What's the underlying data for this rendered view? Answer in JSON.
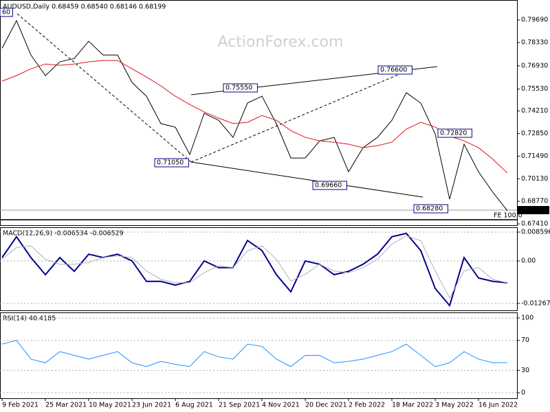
{
  "chart_data": [
    {
      "type": "line",
      "title": "AUDUSD,Daily  0.68459 0.68540 0.68146 0.68199",
      "watermark": "ActionForex.com",
      "ylim": [
        0.6733,
        0.8077
      ],
      "yticks": [
        {
          "value": 0.7969,
          "label": "0.79690"
        },
        {
          "value": 0.7833,
          "label": "0.78330"
        },
        {
          "value": 0.7693,
          "label": "0.76930"
        },
        {
          "value": 0.7553,
          "label": "0.75530"
        },
        {
          "value": 0.7421,
          "label": "0.74210"
        },
        {
          "value": 0.7285,
          "label": "0.72850"
        },
        {
          "value": 0.7149,
          "label": "0.71490"
        },
        {
          "value": 0.7013,
          "label": "0.70130"
        },
        {
          "value": 0.6877,
          "label": "0.68770"
        },
        {
          "value": 0.6741,
          "label": "0.67410"
        }
      ],
      "last_label": "0.68199",
      "annotations": [
        "60",
        "0.75550",
        "0.76600",
        "0.71050",
        "0.69660",
        "0.72820",
        "0.68280",
        "FE 100.0"
      ],
      "series": [
        {
          "color": "#000000",
          "values": [
            0.7799,
            0.7965,
            0.7758,
            0.7634,
            0.7717,
            0.7737,
            0.7841,
            0.7758,
            0.7758,
            0.7593,
            0.751,
            0.7345,
            0.7324,
            0.7159,
            0.7407,
            0.7365,
            0.7262,
            0.7469,
            0.751,
            0.7345,
            0.7138,
            0.7138,
            0.7241,
            0.7262,
            0.7055,
            0.72,
            0.7262,
            0.7365,
            0.7531,
            0.7469,
            0.7283,
            0.689,
            0.7221,
            0.7055,
            0.6931,
            0.682
          ]
        },
        {
          "color": "#e0101a",
          "values": [
            0.7601,
            0.7634,
            0.7675,
            0.7704,
            0.7696,
            0.7704,
            0.7717,
            0.7725,
            0.7725,
            0.7675,
            0.7626,
            0.7572,
            0.751,
            0.746,
            0.7415,
            0.7378,
            0.7345,
            0.7353,
            0.7394,
            0.7365,
            0.7303,
            0.7262,
            0.7241,
            0.7233,
            0.7221,
            0.72,
            0.7212,
            0.7233,
            0.7312,
            0.7353,
            0.7324,
            0.727,
            0.7241,
            0.72,
            0.713,
            0.7047
          ]
        }
      ]
    },
    {
      "type": "line",
      "title": "MACD(12,26,9) -0.006534 -0.006529",
      "ylim": [
        -0.01474,
        0.00982
      ],
      "yticks": [
        0.008596,
        {
          "value": 0,
          "label": "0.00"
        },
        -0.01267
      ],
      "series": [
        {
          "color": "#00008b",
          "values": [
            0.001,
            0.0072,
            0.001,
            -0.0041,
            0.001,
            -0.0031,
            0.002,
            0.001,
            0.002,
            0,
            -0.0061,
            -0.0061,
            -0.0072,
            -0.0061,
            0,
            -0.002,
            -0.002,
            0.0061,
            0.0031,
            -0.0041,
            -0.0092,
            0,
            -0.001,
            -0.0041,
            -0.0031,
            -0.001,
            0.002,
            0.0072,
            0.0082,
            0.0031,
            -0.0082,
            -0.0133,
            0.001,
            -0.0051,
            -0.0061,
            -0.006534
          ]
        },
        {
          "color": "#b0b0b0",
          "values": [
            0.0005,
            0.004,
            0.0045,
            0.0005,
            -0.001,
            -0.001,
            -0.0005,
            0.001,
            0.0015,
            0.001,
            -0.003,
            -0.0055,
            -0.0065,
            -0.0065,
            -0.0035,
            -0.0015,
            -0.002,
            0.003,
            0.0045,
            0.0005,
            -0.006,
            -0.004,
            -0.001,
            -0.003,
            -0.0035,
            -0.002,
            0.0005,
            0.005,
            0.0075,
            0.006,
            -0.003,
            -0.011,
            -0.003,
            -0.002,
            -0.0055,
            -0.006529
          ]
        }
      ]
    },
    {
      "type": "line",
      "title": "RSI(14) 40.4185",
      "ylim": [
        -7.3,
        106.4
      ],
      "yticks": [
        100,
        70,
        30,
        0
      ],
      "categories": [
        "9 Feb 2021",
        null,
        null,
        "25 Mar 2021",
        null,
        null,
        "10 May 2021",
        null,
        null,
        "23 Jun 2021",
        null,
        null,
        "6 Aug 2021",
        null,
        null,
        "21 Sep 2021",
        null,
        null,
        "4 Nov 2021",
        null,
        null,
        "20 Dec 2021",
        null,
        null,
        "2 Feb 2022",
        null,
        null,
        "18 Mar 2022",
        null,
        null,
        "3 May 2022",
        null,
        null,
        "16 Jun 2022",
        null,
        null
      ],
      "series": [
        {
          "color": "#1e90ff",
          "values": [
            65,
            70,
            45,
            40,
            55,
            50,
            45,
            50,
            55,
            40,
            35,
            42,
            38,
            35,
            55,
            48,
            45,
            65,
            62,
            45,
            35,
            50,
            50,
            40,
            42,
            45,
            50,
            55,
            65,
            50,
            35,
            40,
            55,
            45,
            40,
            40.4185
          ]
        }
      ]
    }
  ]
}
